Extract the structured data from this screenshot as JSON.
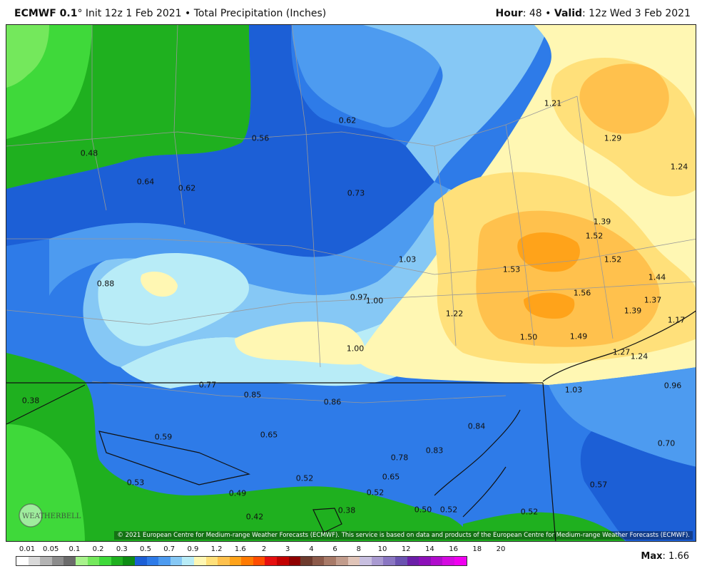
{
  "header": {
    "model": "ECMWF 0.1",
    "degree": "°",
    "init": "Init 12z 1 Feb 2021",
    "bullet": "•",
    "product": "Total Precipitation (Inches)",
    "hour_label": "Hour",
    "hour_value": ": 48",
    "valid_label": "Valid",
    "valid_value": ": 12z Wed 3 Feb 2021"
  },
  "map": {
    "copyright": "© 2021 European Centre for Medium-range Weather Forecasts (ECMWF). This service is based on data and products of the European Centre for Medium-range Weather Forecasts (ECMWF).",
    "logo_text": "WEATHERBELL",
    "value_labels": [
      "0.62",
      "0.56",
      "0.48",
      "0.64",
      "0.62",
      "0.73",
      "1.21",
      "1.29",
      "1.24",
      "1.39",
      "1.52",
      "1.52",
      "1.53",
      "1.03",
      "1.44",
      "0.88",
      "0.97",
      "1.00",
      "1.56",
      "1.37",
      "1.22",
      "1.39",
      "1.17",
      "1.50",
      "1.49",
      "1.00",
      "1.27",
      "1.24",
      "0.77",
      "0.85",
      "1.03",
      "0.96",
      "0.38",
      "0.86",
      "0.59",
      "0.65",
      "0.84",
      "0.78",
      "0.83",
      "0.70",
      "0.65",
      "0.53",
      "0.52",
      "0.49",
      "0.52",
      "0.57",
      "0.42",
      "0.38",
      "0.50",
      "0.52",
      "0.52"
    ]
  },
  "legend": {
    "labels": [
      "0.01",
      "0.05",
      "0.1",
      "0.2",
      "0.3",
      "0.5",
      "0.7",
      "0.9",
      "1.2",
      "1.6",
      "2",
      "3",
      "4",
      "6",
      "8",
      "10",
      "12",
      "14",
      "16",
      "18",
      "20"
    ],
    "colors": [
      "#ffffff",
      "#d9d9d9",
      "#b3b3b3",
      "#8c8c8c",
      "#6b6b6b",
      "#a8f28c",
      "#74e85c",
      "#3fd93a",
      "#1fb01f",
      "#0d8c14",
      "#1c5fd6",
      "#2e7be8",
      "#4d9bf0",
      "#86c8f5",
      "#b8ecf7",
      "#fff7b3",
      "#ffe07a",
      "#ffc14d",
      "#ffa31a",
      "#ff7a00",
      "#ff4d00",
      "#e60f0f",
      "#c20000",
      "#8f0000",
      "#6e3b2e",
      "#8c5a4a",
      "#a87a68",
      "#c29c8c",
      "#e0c4b8",
      "#c8bfe0",
      "#a99ad1",
      "#8a76c2",
      "#6a52b0",
      "#6b1fa8",
      "#8c10b8",
      "#b00ccc",
      "#d40ae0",
      "#f000f0"
    ],
    "max_label": "Max",
    "max_value": ": 1.66"
  }
}
